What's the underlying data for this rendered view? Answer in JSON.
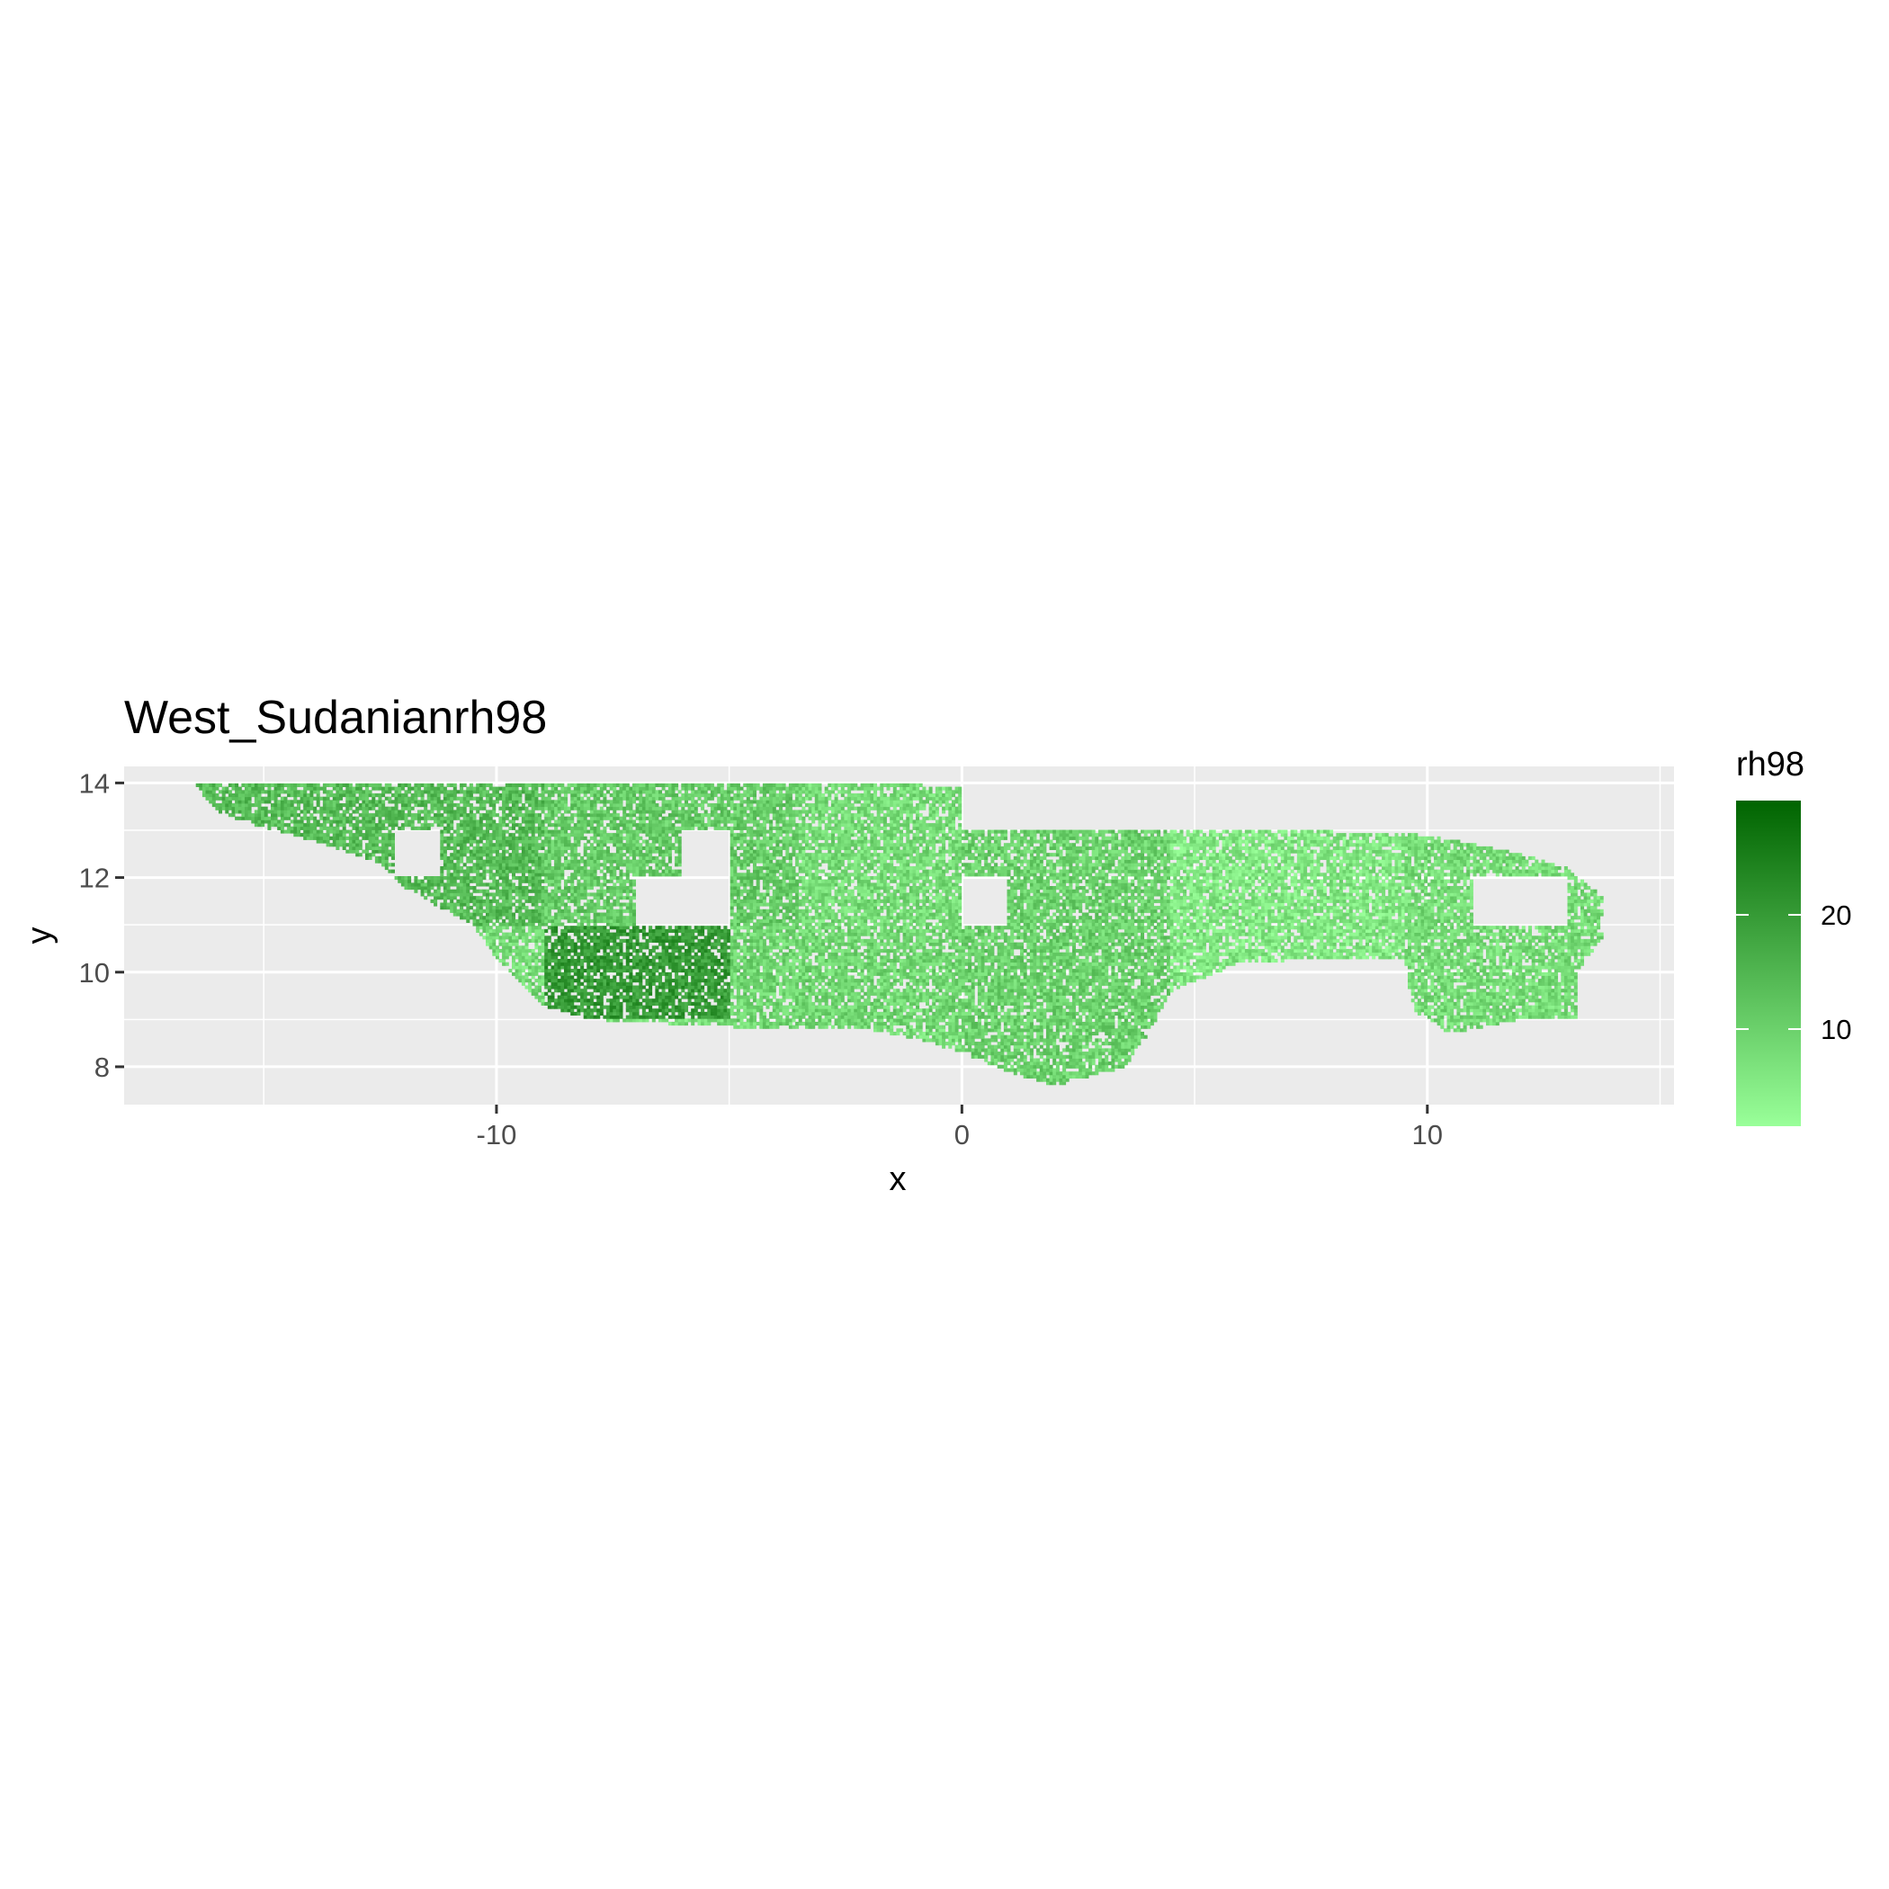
{
  "chart_data": {
    "type": "heatmap",
    "title": "West_Sudanianrh98",
    "xlabel": "x",
    "ylabel": "y",
    "xlim": [
      -18,
      15.3
    ],
    "ylim": [
      7.2,
      14.35
    ],
    "x_ticks": [
      -10,
      0,
      10
    ],
    "x_tick_labels": [
      "-10",
      "0",
      "10"
    ],
    "y_ticks": [
      8,
      10,
      12,
      14
    ],
    "y_tick_labels": [
      "8",
      "10",
      "12",
      "14"
    ],
    "x_minor_gridlines": [
      -15,
      -5,
      5,
      15
    ],
    "y_minor_gridlines": [
      9,
      11,
      13
    ],
    "grid": true,
    "panel_background": "#ebebeb",
    "legend": {
      "title": "rh98",
      "position": "right",
      "range": [
        1.5,
        30
      ],
      "ticks": [
        10,
        20
      ],
      "tick_labels": [
        "10",
        "20"
      ],
      "color_low": "#99ff99",
      "color_high": "#006400"
    },
    "region_outline": [
      [
        -16.5,
        14.0
      ],
      [
        -1.5,
        14.0
      ],
      [
        0.0,
        13.9
      ],
      [
        0.0,
        13.0
      ],
      [
        7.5,
        13.0
      ],
      [
        10.0,
        12.9
      ],
      [
        12.0,
        12.5
      ],
      [
        13.0,
        12.2
      ],
      [
        13.8,
        11.6
      ],
      [
        13.8,
        10.8
      ],
      [
        13.2,
        10.0
      ],
      [
        13.2,
        9.0
      ],
      [
        12.0,
        9.0
      ],
      [
        10.5,
        8.7
      ],
      [
        9.7,
        9.2
      ],
      [
        9.5,
        10.3
      ],
      [
        8.0,
        10.3
      ],
      [
        6.0,
        10.2
      ],
      [
        5.0,
        9.8
      ],
      [
        4.5,
        9.6
      ],
      [
        4.0,
        8.7
      ],
      [
        3.5,
        8.0
      ],
      [
        2.0,
        7.6
      ],
      [
        1.0,
        7.9
      ],
      [
        0.0,
        8.3
      ],
      [
        -1.0,
        8.6
      ],
      [
        -2.0,
        8.8
      ],
      [
        -4.0,
        8.8
      ],
      [
        -6.0,
        8.9
      ],
      [
        -8.0,
        9.0
      ],
      [
        -9.0,
        9.3
      ],
      [
        -10.0,
        10.3
      ],
      [
        -10.5,
        11.0
      ],
      [
        -12.0,
        11.8
      ],
      [
        -12.5,
        12.3
      ],
      [
        -14.0,
        12.8
      ],
      [
        -15.5,
        13.2
      ],
      [
        -16.0,
        13.4
      ]
    ],
    "nodata_gaps": [
      {
        "x": [
          -12.2,
          -11.2
        ],
        "y": [
          12.0,
          13.0
        ]
      },
      {
        "x": [
          -7.0,
          -5.0
        ],
        "y": [
          11.0,
          12.0
        ]
      },
      {
        "x": [
          -6.0,
          -5.0
        ],
        "y": [
          12.0,
          13.0
        ]
      },
      {
        "x": [
          0.0,
          1.0
        ],
        "y": [
          11.0,
          12.0
        ]
      },
      {
        "x": [
          11.0,
          13.0
        ],
        "y": [
          11.0,
          12.0
        ]
      }
    ],
    "value_zones": [
      {
        "x": [
          -16.5,
          -9.0
        ],
        "y": [
          11.0,
          14.0
        ],
        "level": 14
      },
      {
        "x": [
          -9.0,
          -5.0
        ],
        "y": [
          9.0,
          11.0
        ],
        "level": 20
      },
      {
        "x": [
          -9.0,
          -3.5
        ],
        "y": [
          11.0,
          14.0
        ],
        "level": 11
      },
      {
        "x": [
          -5.0,
          0.0
        ],
        "y": [
          8.8,
          11.0
        ],
        "level": 9
      },
      {
        "x": [
          -3.5,
          0.0
        ],
        "y": [
          11.0,
          14.0
        ],
        "level": 8
      },
      {
        "x": [
          0.0,
          4.5
        ],
        "y": [
          7.6,
          13.0
        ],
        "level": 10
      },
      {
        "x": [
          4.5,
          9.5
        ],
        "y": [
          9.6,
          13.0
        ],
        "level": 6
      },
      {
        "x": [
          9.5,
          13.8
        ],
        "y": [
          8.7,
          12.9
        ],
        "level": 8
      }
    ]
  }
}
